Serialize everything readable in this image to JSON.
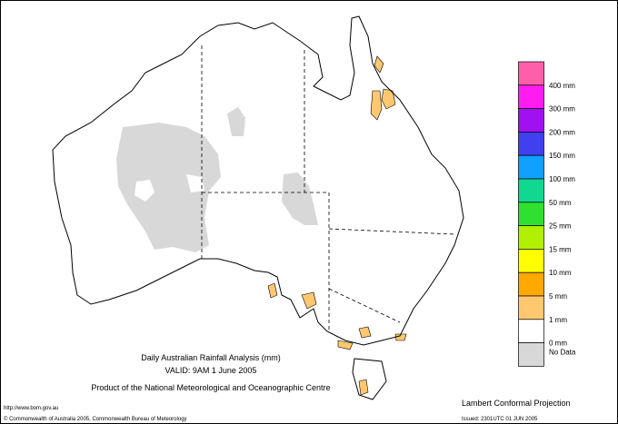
{
  "title": [
    "Daily Australian Rainfall Analysis (mm)",
    "VALID: 9AM   1 June 2005",
    "Product of the National Meteorological and Oceanographic Centre"
  ],
  "legend": [
    {
      "color": "#ff5fa8",
      "label": "400 mm"
    },
    {
      "color": "#ff1cf0",
      "label": "300 mm"
    },
    {
      "color": "#a010f0",
      "label": "200 mm"
    },
    {
      "color": "#4040f0",
      "label": "150 mm"
    },
    {
      "color": "#10a0ff",
      "label": "100 mm"
    },
    {
      "color": "#10d890",
      "label": "50 mm"
    },
    {
      "color": "#30e030",
      "label": "25 mm"
    },
    {
      "color": "#b0f000",
      "label": "15 mm"
    },
    {
      "color": "#ffff00",
      "label": "10 mm"
    },
    {
      "color": "#ffa800",
      "label": "5 mm"
    },
    {
      "color": "#ffc870",
      "label": "1 mm"
    },
    {
      "color": "#ffffff",
      "label": "0 mm"
    },
    {
      "color": "#d8d8d8",
      "label": "No Data"
    }
  ],
  "footer": {
    "url": "http://www.bom.gov.au",
    "copyright": "© Commonwealth of Australia 2005, Commonwealth Bureau of Meteorology",
    "projection": "Lambert Conformal Projection",
    "issued": "Issued: 2301UTC 01 JUN 2005"
  }
}
